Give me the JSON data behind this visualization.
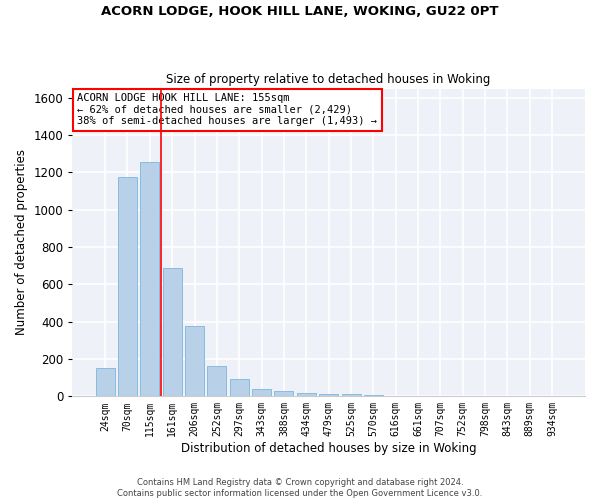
{
  "title1": "ACORN LODGE, HOOK HILL LANE, WOKING, GU22 0PT",
  "title2": "Size of property relative to detached houses in Woking",
  "xlabel": "Distribution of detached houses by size in Woking",
  "ylabel": "Number of detached properties",
  "bar_color": "#b8d0e8",
  "bar_edge_color": "#6aaed6",
  "background_color": "#eef2f8",
  "grid_color": "#ffffff",
  "categories": [
    "24sqm",
    "70sqm",
    "115sqm",
    "161sqm",
    "206sqm",
    "252sqm",
    "297sqm",
    "343sqm",
    "388sqm",
    "434sqm",
    "479sqm",
    "525sqm",
    "570sqm",
    "616sqm",
    "661sqm",
    "707sqm",
    "752sqm",
    "798sqm",
    "843sqm",
    "889sqm",
    "934sqm"
  ],
  "values": [
    150,
    1175,
    1258,
    690,
    375,
    165,
    95,
    38,
    28,
    20,
    15,
    12,
    8,
    0,
    0,
    0,
    0,
    0,
    0,
    0,
    0
  ],
  "ylim": [
    0,
    1650
  ],
  "yticks": [
    0,
    200,
    400,
    600,
    800,
    1000,
    1200,
    1400,
    1600
  ],
  "property_line_x": 2.5,
  "annotation_title": "ACORN LODGE HOOK HILL LANE: 155sqm",
  "annotation_line1": "← 62% of detached houses are smaller (2,429)",
  "annotation_line2": "38% of semi-detached houses are larger (1,493) →",
  "annotation_box_color": "white",
  "annotation_box_edge_color": "red",
  "footer1": "Contains HM Land Registry data © Crown copyright and database right 2024.",
  "footer2": "Contains public sector information licensed under the Open Government Licence v3.0."
}
